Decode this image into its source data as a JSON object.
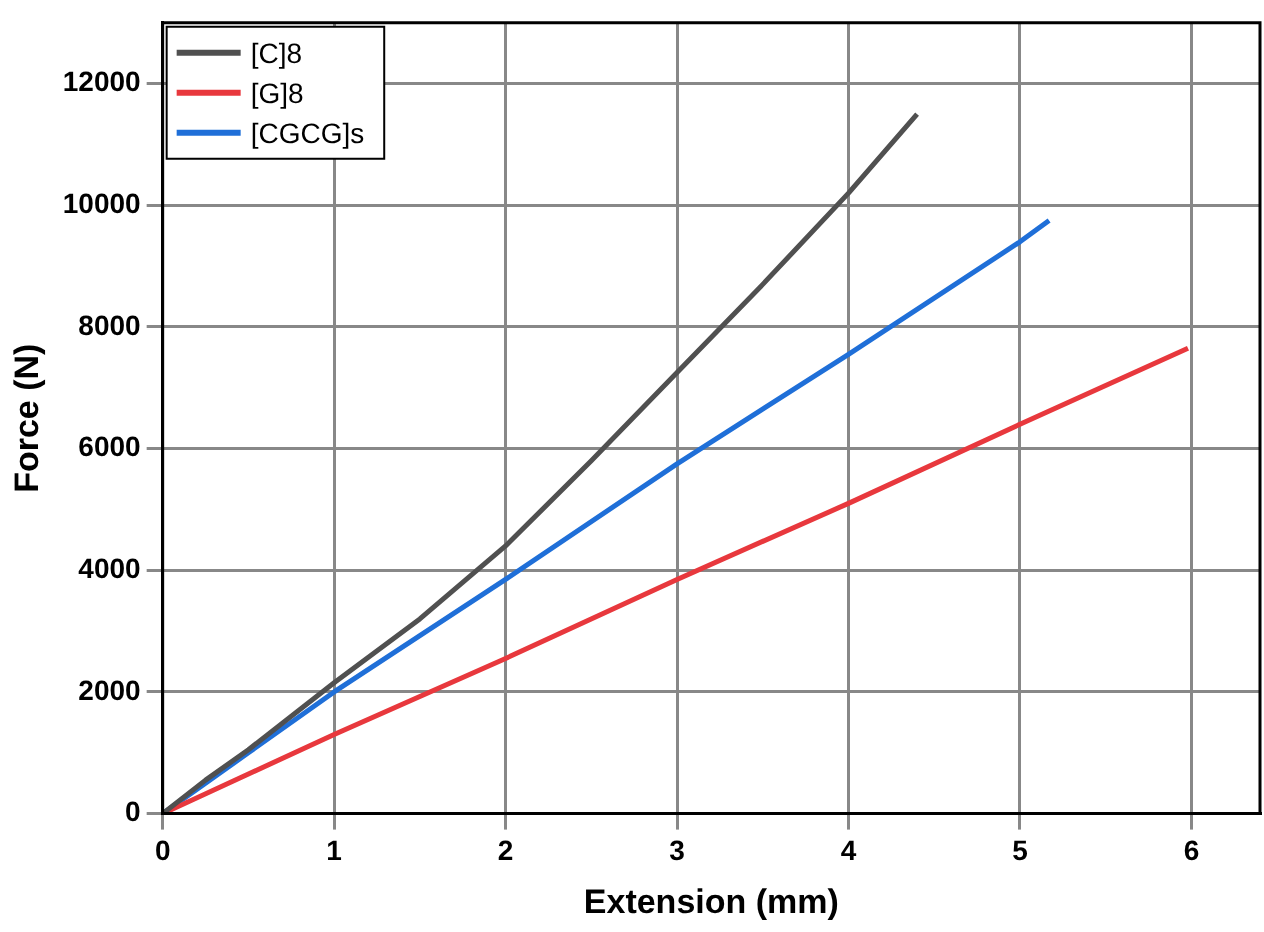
{
  "chart_data": {
    "type": "line",
    "xlabel": "Extension (mm)",
    "ylabel": "Force (N)",
    "xlim": [
      0,
      6.4
    ],
    "ylim": [
      0,
      13000
    ],
    "xticks": [
      0,
      1,
      2,
      3,
      4,
      5,
      6
    ],
    "yticks": [
      0,
      2000,
      4000,
      6000,
      8000,
      10000,
      12000
    ],
    "grid": true,
    "legend": "top left",
    "marker": "none",
    "line_style": "solid",
    "series": [
      {
        "name": "[C]8",
        "color": "#505050",
        "x": [
          0,
          0.25,
          0.5,
          1,
          1.5,
          2,
          2.5,
          3,
          3.5,
          4,
          4.4
        ],
        "values": [
          0,
          550,
          1050,
          2150,
          3200,
          4400,
          5800,
          7250,
          8700,
          10200,
          11500
        ]
      },
      {
        "name": "[G]8",
        "color": "#e8383d",
        "x": [
          0,
          1,
          2,
          3,
          4,
          5,
          5.98
        ],
        "values": [
          0,
          1300,
          2550,
          3850,
          5100,
          6400,
          7650
        ]
      },
      {
        "name": "[CGCG]s",
        "color": "#1f6fd8",
        "x": [
          0,
          0.25,
          0.5,
          1,
          2,
          3,
          4,
          5,
          5.17
        ],
        "values": [
          0,
          500,
          1000,
          2000,
          3850,
          5750,
          7550,
          9400,
          9750
        ]
      }
    ]
  }
}
